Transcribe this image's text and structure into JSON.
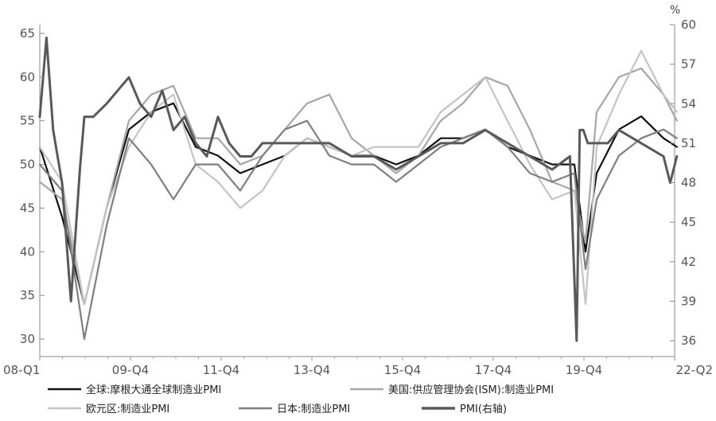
{
  "chart_data": {
    "type": "line",
    "title": "",
    "x_unit": "quarter",
    "x_ticks": [
      "08-Q1",
      "09-Q4",
      "11-Q4",
      "13-Q4",
      "15-Q4",
      "17-Q4",
      "19-Q4",
      "22-Q2"
    ],
    "x_range": [
      "2008-Q1",
      "2022-Q2"
    ],
    "y_left": {
      "ylim": [
        28,
        66
      ],
      "ticks": [
        30,
        35,
        40,
        45,
        50,
        55,
        60,
        65
      ]
    },
    "y_right": {
      "unit": "%",
      "ylim": [
        34.8,
        60
      ],
      "ticks": [
        36,
        39,
        42,
        45,
        48,
        51,
        54,
        57,
        60
      ]
    },
    "grid": false,
    "legend_position": "bottom",
    "series": [
      {
        "name": "全球:摩根大通全球制造业PMI",
        "axis": "left",
        "color": "#111111",
        "x": [
          2008.0,
          2008.5,
          2009.0,
          2009.5,
          2010.0,
          2010.5,
          2011.0,
          2011.5,
          2012.0,
          2012.5,
          2013.0,
          2013.5,
          2014.0,
          2014.5,
          2015.0,
          2015.5,
          2016.0,
          2016.5,
          2017.0,
          2017.5,
          2018.0,
          2018.5,
          2019.0,
          2019.5,
          2020.0,
          2020.25,
          2020.5,
          2021.0,
          2021.5,
          2022.0,
          2022.3
        ],
        "y": [
          52,
          44,
          34,
          45,
          54,
          56,
          57,
          52,
          51,
          49,
          50,
          51,
          53,
          52,
          51,
          51,
          50,
          51,
          53,
          53,
          54,
          52,
          51,
          50,
          50,
          40,
          49,
          54,
          55.5,
          53,
          52
        ]
      },
      {
        "name": "美国:供应管理协会(ISM):制造业PMI",
        "axis": "left",
        "color": "#a6a6a6",
        "x": [
          2008.0,
          2008.5,
          2009.0,
          2009.5,
          2010.0,
          2010.5,
          2011.0,
          2011.5,
          2012.0,
          2012.5,
          2013.0,
          2013.5,
          2014.0,
          2014.5,
          2015.0,
          2015.5,
          2016.0,
          2016.5,
          2017.0,
          2017.5,
          2018.0,
          2018.5,
          2019.0,
          2019.5,
          2020.0,
          2020.25,
          2020.5,
          2021.0,
          2021.5,
          2022.0,
          2022.3
        ],
        "y": [
          48,
          46,
          34,
          45,
          55,
          58,
          59,
          53,
          53,
          50,
          51,
          54,
          57,
          58,
          53,
          51,
          49,
          51,
          55,
          57,
          60,
          59,
          54,
          48,
          47,
          41,
          56,
          60,
          61,
          58,
          55
        ]
      },
      {
        "name": "欧元区:制造业PMI",
        "axis": "left",
        "color": "#c4c4c4",
        "x": [
          2008.0,
          2008.5,
          2009.0,
          2009.5,
          2010.0,
          2010.5,
          2011.0,
          2011.5,
          2012.0,
          2012.5,
          2013.0,
          2013.5,
          2014.0,
          2014.5,
          2015.0,
          2015.5,
          2016.0,
          2016.5,
          2017.0,
          2017.5,
          2018.0,
          2018.5,
          2019.0,
          2019.5,
          2020.0,
          2020.25,
          2020.5,
          2021.0,
          2021.5,
          2022.0,
          2022.3
        ],
        "y": [
          52,
          48,
          34,
          45,
          52,
          56,
          58,
          50,
          48,
          45,
          47,
          51,
          53,
          52,
          51,
          52,
          52,
          52,
          56,
          58,
          60,
          55,
          50,
          46,
          47,
          34,
          52,
          58,
          63,
          58,
          56
        ]
      },
      {
        "name": "日本:制造业PMI",
        "axis": "left",
        "color": "#7f7f7f",
        "x": [
          2008.0,
          2008.5,
          2009.0,
          2009.5,
          2010.0,
          2010.5,
          2011.0,
          2011.5,
          2012.0,
          2012.5,
          2013.0,
          2013.5,
          2014.0,
          2014.5,
          2015.0,
          2015.5,
          2016.0,
          2016.5,
          2017.0,
          2017.5,
          2018.0,
          2018.5,
          2019.0,
          2019.5,
          2020.0,
          2020.25,
          2020.5,
          2021.0,
          2021.5,
          2022.0,
          2022.3
        ],
        "y": [
          50,
          47,
          30,
          43,
          53,
          50,
          46,
          50,
          50,
          47,
          51,
          54,
          55,
          51,
          50,
          50,
          48,
          50,
          52,
          53,
          54,
          52,
          49,
          48,
          49,
          38,
          46,
          51,
          53,
          54,
          53
        ]
      },
      {
        "name": "PMI(右轴)",
        "axis": "right",
        "color": "#595959",
        "x": [
          2008.0,
          2008.15,
          2008.3,
          2008.5,
          2008.7,
          2008.9,
          2009.0,
          2009.2,
          2009.5,
          2009.75,
          2010.0,
          2010.25,
          2010.5,
          2010.75,
          2011.0,
          2011.25,
          2011.5,
          2011.75,
          2012.0,
          2012.25,
          2012.5,
          2012.75,
          2013.0,
          2013.5,
          2014.0,
          2014.5,
          2015.0,
          2015.5,
          2016.0,
          2016.5,
          2017.0,
          2017.5,
          2018.0,
          2018.5,
          2019.0,
          2019.5,
          2019.9,
          2020.05,
          2020.12,
          2020.2,
          2020.3,
          2020.5,
          2020.75,
          2021.0,
          2021.5,
          2022.0,
          2022.15,
          2022.3
        ],
        "y": [
          53,
          59,
          52,
          48,
          39,
          49,
          53,
          53,
          54,
          55,
          56,
          54,
          53,
          55,
          52,
          53,
          51,
          50,
          53,
          51,
          50,
          50,
          51,
          51,
          51,
          51,
          50,
          50,
          49,
          50,
          51,
          51,
          52,
          51,
          50,
          49,
          50,
          36,
          52,
          52,
          51,
          51,
          51,
          52,
          51,
          50,
          48,
          50
        ]
      }
    ]
  }
}
